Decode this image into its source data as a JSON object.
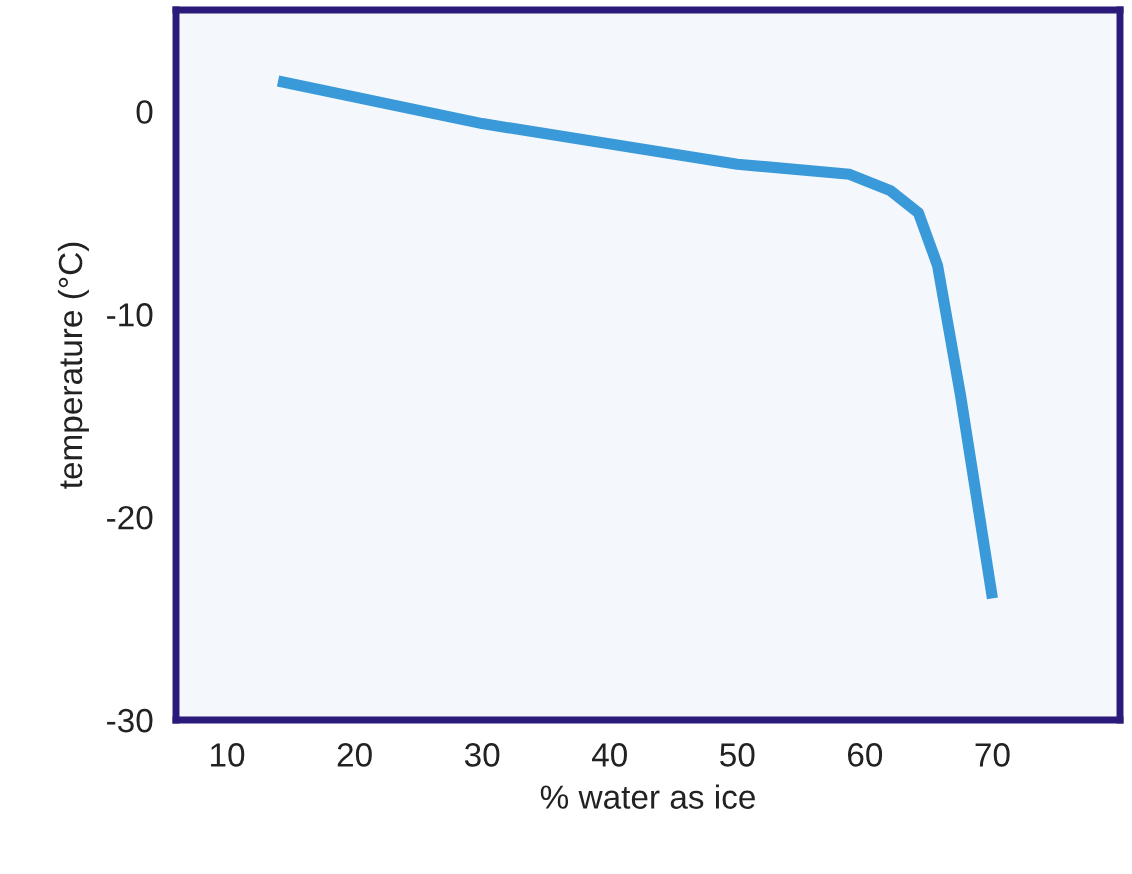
{
  "chart_data": {
    "type": "line",
    "xlabel": "% water as ice",
    "ylabel": "temperature (°C)",
    "x": [
      14,
      30,
      50,
      58.8,
      62,
      64.2,
      65.7,
      67.5,
      70
    ],
    "series": [
      {
        "color": "#3a9ad9",
        "values": [
          1.5,
          -0.6,
          -2.6,
          -3.1,
          -3.9,
          -5.0,
          -7.6,
          -14,
          -24
        ]
      }
    ],
    "xlim": [
      6,
      80
    ],
    "ylim": [
      -30,
      5
    ],
    "xticks": [
      10,
      20,
      30,
      40,
      50,
      60,
      70
    ],
    "yticks": [
      -30,
      -20,
      -10,
      0
    ],
    "grid": false,
    "legend": false,
    "marker": "none",
    "line_style": "solid"
  }
}
